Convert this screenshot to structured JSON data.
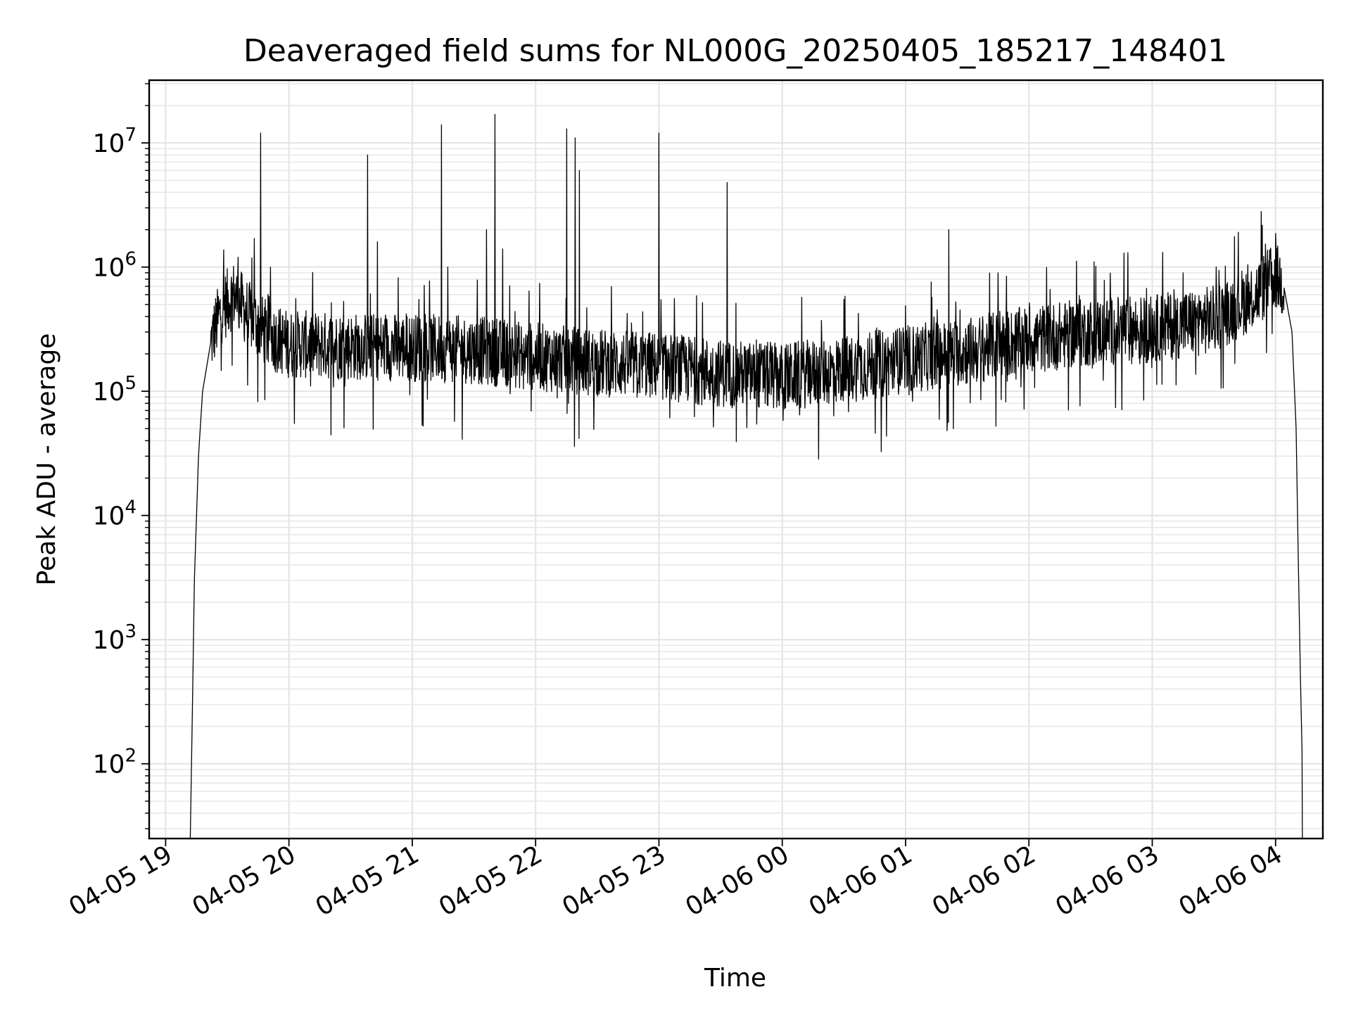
{
  "chart_data": {
    "type": "line",
    "title": "Deaveraged field sums for NL000G_20250405_185217_148401",
    "xlabel": "Time",
    "ylabel": "Peak ADU - average",
    "yscale": "log",
    "ylim": [
      25,
      32000000
    ],
    "xlim": [
      "2025-04-05 18:52",
      "2025-04-06 04:23"
    ],
    "grid": true,
    "x_ticks": [
      "04-05 19",
      "04-05 20",
      "04-05 21",
      "04-05 22",
      "04-05 23",
      "04-06 00",
      "04-06 01",
      "04-06 02",
      "04-06 03",
      "04-06 04"
    ],
    "y_ticks": [
      {
        "base": "10",
        "exp": "2",
        "value": 100
      },
      {
        "base": "10",
        "exp": "3",
        "value": 1000
      },
      {
        "base": "10",
        "exp": "4",
        "value": 10000
      },
      {
        "base": "10",
        "exp": "5",
        "value": 100000
      },
      {
        "base": "10",
        "exp": "6",
        "value": 1000000
      },
      {
        "base": "10",
        "exp": "7",
        "value": 10000000
      }
    ],
    "baseline": [
      [
        "2025-04-05 19:12",
        25
      ],
      [
        "2025-04-05 19:13",
        250
      ],
      [
        "2025-04-05 19:14",
        3000
      ],
      [
        "2025-04-05 19:16",
        30000
      ],
      [
        "2025-04-05 19:18",
        100000
      ],
      [
        "2025-04-05 19:22",
        250000
      ],
      [
        "2025-04-05 19:27",
        450000
      ],
      [
        "2025-04-05 19:33",
        600000
      ],
      [
        "2025-04-05 19:40",
        420000
      ],
      [
        "2025-04-05 19:50",
        280000
      ],
      [
        "2025-04-05 20:00",
        240000
      ],
      [
        "2025-04-05 20:30",
        230000
      ],
      [
        "2025-04-05 21:00",
        225000
      ],
      [
        "2025-04-05 21:30",
        215000
      ],
      [
        "2025-04-05 22:00",
        190000
      ],
      [
        "2025-04-05 22:30",
        170000
      ],
      [
        "2025-04-05 23:00",
        160000
      ],
      [
        "2025-04-05 23:30",
        140000
      ],
      [
        "2025-04-06 00:00",
        130000
      ],
      [
        "2025-04-06 00:30",
        150000
      ],
      [
        "2025-04-06 01:00",
        180000
      ],
      [
        "2025-04-06 01:30",
        210000
      ],
      [
        "2025-04-06 02:00",
        260000
      ],
      [
        "2025-04-06 02:30",
        300000
      ],
      [
        "2025-04-06 03:00",
        320000
      ],
      [
        "2025-04-06 03:30",
        380000
      ],
      [
        "2025-04-06 03:50",
        600000
      ],
      [
        "2025-04-06 04:00",
        850000
      ],
      [
        "2025-04-06 04:04",
        700000
      ],
      [
        "2025-04-06 04:08",
        300000
      ],
      [
        "2025-04-06 04:10",
        50000
      ],
      [
        "2025-04-06 04:11",
        5000
      ],
      [
        "2025-04-06 04:12",
        600
      ],
      [
        "2025-04-06 04:13",
        100
      ],
      [
        "2025-04-06 04:13",
        25
      ]
    ],
    "spikes": [
      [
        "2025-04-05 19:43",
        1700000
      ],
      [
        "2025-04-05 19:46",
        12000000
      ],
      [
        "2025-04-05 19:51",
        1000000
      ],
      [
        "2025-04-05 19:35",
        1200000
      ],
      [
        "2025-04-05 20:38",
        8000000
      ],
      [
        "2025-04-05 20:43",
        1600000
      ],
      [
        "2025-04-05 21:03",
        550000
      ],
      [
        "2025-04-05 21:14",
        14000000
      ],
      [
        "2025-04-05 21:17",
        1000000
      ],
      [
        "2025-04-05 21:36",
        2000000
      ],
      [
        "2025-04-05 21:40",
        17000000
      ],
      [
        "2025-04-05 21:44",
        1400000
      ],
      [
        "2025-04-05 22:15",
        13000000
      ],
      [
        "2025-04-05 22:19",
        11000000
      ],
      [
        "2025-04-05 22:21",
        6000000
      ],
      [
        "2025-04-05 23:00",
        1000000
      ],
      [
        "2025-04-05 23:00",
        12000000
      ],
      [
        "2025-04-05 23:33",
        4800000
      ],
      [
        "2025-04-06 00:30",
        550000
      ],
      [
        "2025-04-06 01:21",
        2000000
      ],
      [
        "2025-04-06 01:45",
        900000
      ],
      [
        "2025-04-06 02:46",
        1300000
      ],
      [
        "2025-04-06 03:15",
        900000
      ],
      [
        "2025-04-06 03:53",
        2800000
      ],
      [
        "2025-04-06 03:58",
        1100000
      ]
    ]
  }
}
